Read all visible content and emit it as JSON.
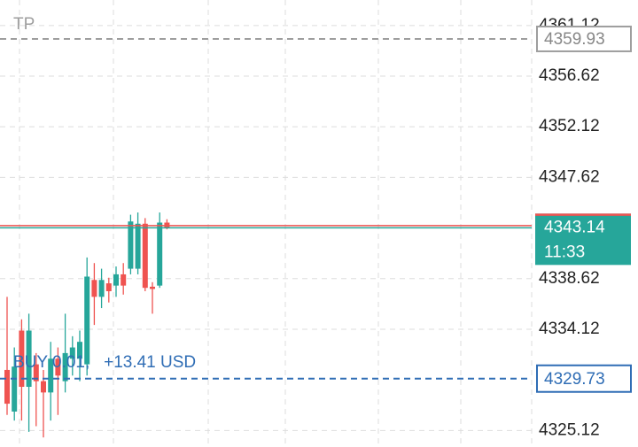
{
  "chart_data": {
    "type": "candlestick",
    "categories": [
      null,
      null,
      null,
      null,
      null,
      null,
      null,
      null,
      null,
      null,
      null,
      null,
      null,
      null,
      null,
      null,
      null,
      null,
      null,
      null,
      null,
      null,
      null
    ],
    "open": [
      4330.5,
      4326.8,
      4334.0,
      4329.0,
      4331.0,
      4329.5,
      4328.5,
      4331.5,
      4329.5,
      4331.5,
      4331.5,
      4331.0,
      4338.5,
      4337.0,
      4338.2,
      4338.0,
      4339.0,
      4339.5,
      4339.5,
      4343.5,
      4337.9,
      4338.0,
      4343.6
    ],
    "high": [
      4337.0,
      4332.5,
      4335.0,
      4335.5,
      4332.0,
      4330.5,
      4333.0,
      4332.5,
      4335.5,
      4333.5,
      4334.0,
      4340.5,
      4340.0,
      4339.5,
      4338.7,
      4339.7,
      4340.0,
      4344.3,
      4344.5,
      4344.0,
      4338.3,
      4344.5,
      4343.9
    ],
    "low": [
      4326.5,
      4326.0,
      4326.0,
      4325.0,
      4325.5,
      4324.5,
      4326.0,
      4326.5,
      4328.5,
      4330.0,
      4329.5,
      4330.0,
      4334.5,
      4336.0,
      4336.5,
      4337.0,
      4337.2,
      4339.0,
      4339.0,
      4337.5,
      4335.5,
      4337.8,
      4343.0
    ],
    "close": [
      4327.5,
      4330.8,
      4329.0,
      4334.0,
      4329.5,
      4328.5,
      4331.5,
      4330.0,
      4332.0,
      4332.5,
      4333.0,
      4338.8,
      4337.0,
      4338.5,
      4337.5,
      4339.0,
      4338.0,
      4343.7,
      4343.5,
      4337.8,
      4337.7,
      4343.6,
      4343.14
    ],
    "up_color": "#26a69a",
    "down_color": "#ef5350",
    "ylim": [
      4323.65,
      4363.39
    ],
    "yticks": [
      4361.12,
      4356.62,
      4352.12,
      4347.62,
      4338.62,
      4334.12,
      4325.12
    ],
    "grid": true,
    "tp_line": {
      "label": "TP",
      "value": 4359.93,
      "color": "#9e9e9e"
    },
    "order_line": {
      "label": "BUY 0.01,   +13.41 USD",
      "value": 4329.73,
      "color": "#2f6db5"
    },
    "last_price": {
      "value": 4343.14,
      "countdown": "11:33",
      "color": "#26a69a"
    }
  }
}
